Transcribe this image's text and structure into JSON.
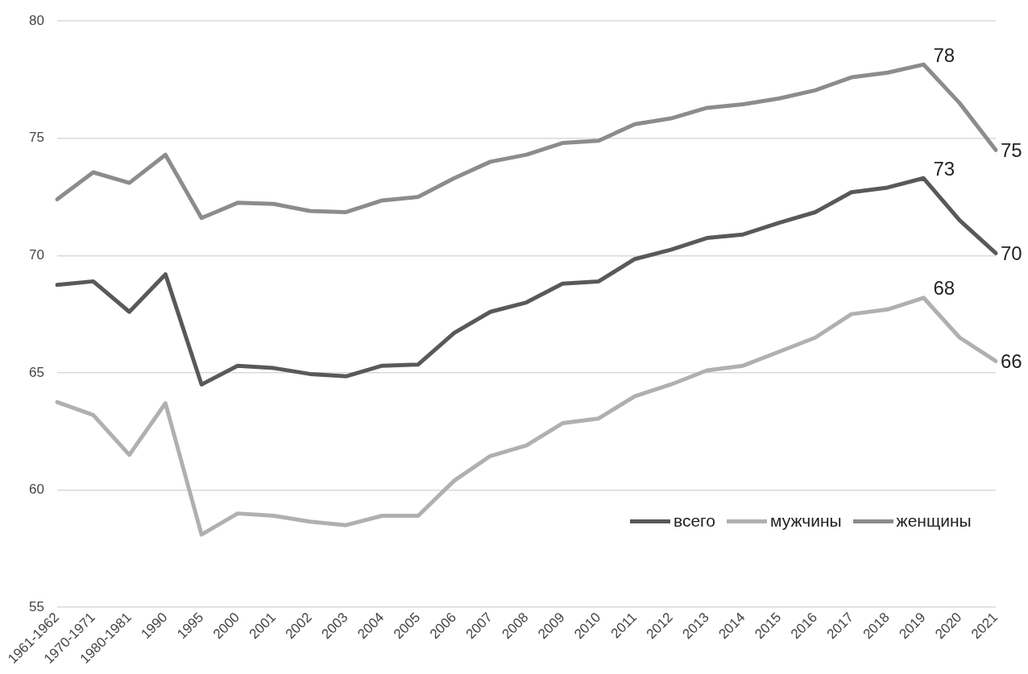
{
  "chart_data": {
    "type": "line",
    "categories": [
      "1961-1962",
      "1970-1971",
      "1980-1981",
      "1990",
      "1995",
      "2000",
      "2001",
      "2002",
      "2003",
      "2004",
      "2005",
      "2006",
      "2007",
      "2008",
      "2009",
      "2010",
      "2011",
      "2012",
      "2013",
      "2014",
      "2015",
      "2016",
      "2017",
      "2018",
      "2019",
      "2020",
      "2021"
    ],
    "series": [
      {
        "name": "всего",
        "color": "#595959",
        "values": [
          68.75,
          68.9,
          67.6,
          69.2,
          64.5,
          65.3,
          65.2,
          64.95,
          64.85,
          65.3,
          65.35,
          66.7,
          67.6,
          68.0,
          68.8,
          68.9,
          69.85,
          70.25,
          70.75,
          70.9,
          71.4,
          71.85,
          72.7,
          72.9,
          73.3,
          71.5,
          70.1
        ],
        "value_labels": [
          null,
          null,
          null,
          null,
          null,
          null,
          null,
          null,
          null,
          null,
          null,
          null,
          null,
          null,
          null,
          null,
          null,
          null,
          null,
          null,
          null,
          null,
          null,
          null,
          "73",
          null,
          "70"
        ]
      },
      {
        "name": "мужчины",
        "color": "#b0b0b0",
        "values": [
          63.75,
          63.2,
          61.5,
          63.7,
          58.1,
          59.0,
          58.9,
          58.65,
          58.5,
          58.9,
          58.9,
          60.4,
          61.45,
          61.9,
          62.85,
          63.05,
          64.0,
          64.5,
          65.1,
          65.3,
          65.9,
          66.5,
          67.5,
          67.7,
          68.2,
          66.5,
          65.5
        ],
        "value_labels": [
          null,
          null,
          null,
          null,
          null,
          null,
          null,
          null,
          null,
          null,
          null,
          null,
          null,
          null,
          null,
          null,
          null,
          null,
          null,
          null,
          null,
          null,
          null,
          null,
          "68",
          null,
          "66"
        ]
      },
      {
        "name": "женщины",
        "color": "#8c8c8c",
        "values": [
          72.4,
          73.55,
          73.1,
          74.3,
          71.6,
          72.25,
          72.2,
          71.9,
          71.85,
          72.35,
          72.5,
          73.3,
          74.0,
          74.3,
          74.8,
          74.9,
          75.6,
          75.85,
          76.3,
          76.45,
          76.7,
          77.05,
          77.6,
          77.8,
          78.15,
          76.5,
          74.5
        ],
        "value_labels": [
          null,
          null,
          null,
          null,
          null,
          null,
          null,
          null,
          null,
          null,
          null,
          null,
          null,
          null,
          null,
          null,
          null,
          null,
          null,
          null,
          null,
          null,
          null,
          null,
          "78",
          null,
          "75"
        ]
      }
    ],
    "ylim": [
      55,
      80
    ],
    "yticks": [
      55,
      60,
      65,
      70,
      75,
      80
    ],
    "grid": "y",
    "legend": "bottom right",
    "marker": "none",
    "line_style": "solid"
  }
}
